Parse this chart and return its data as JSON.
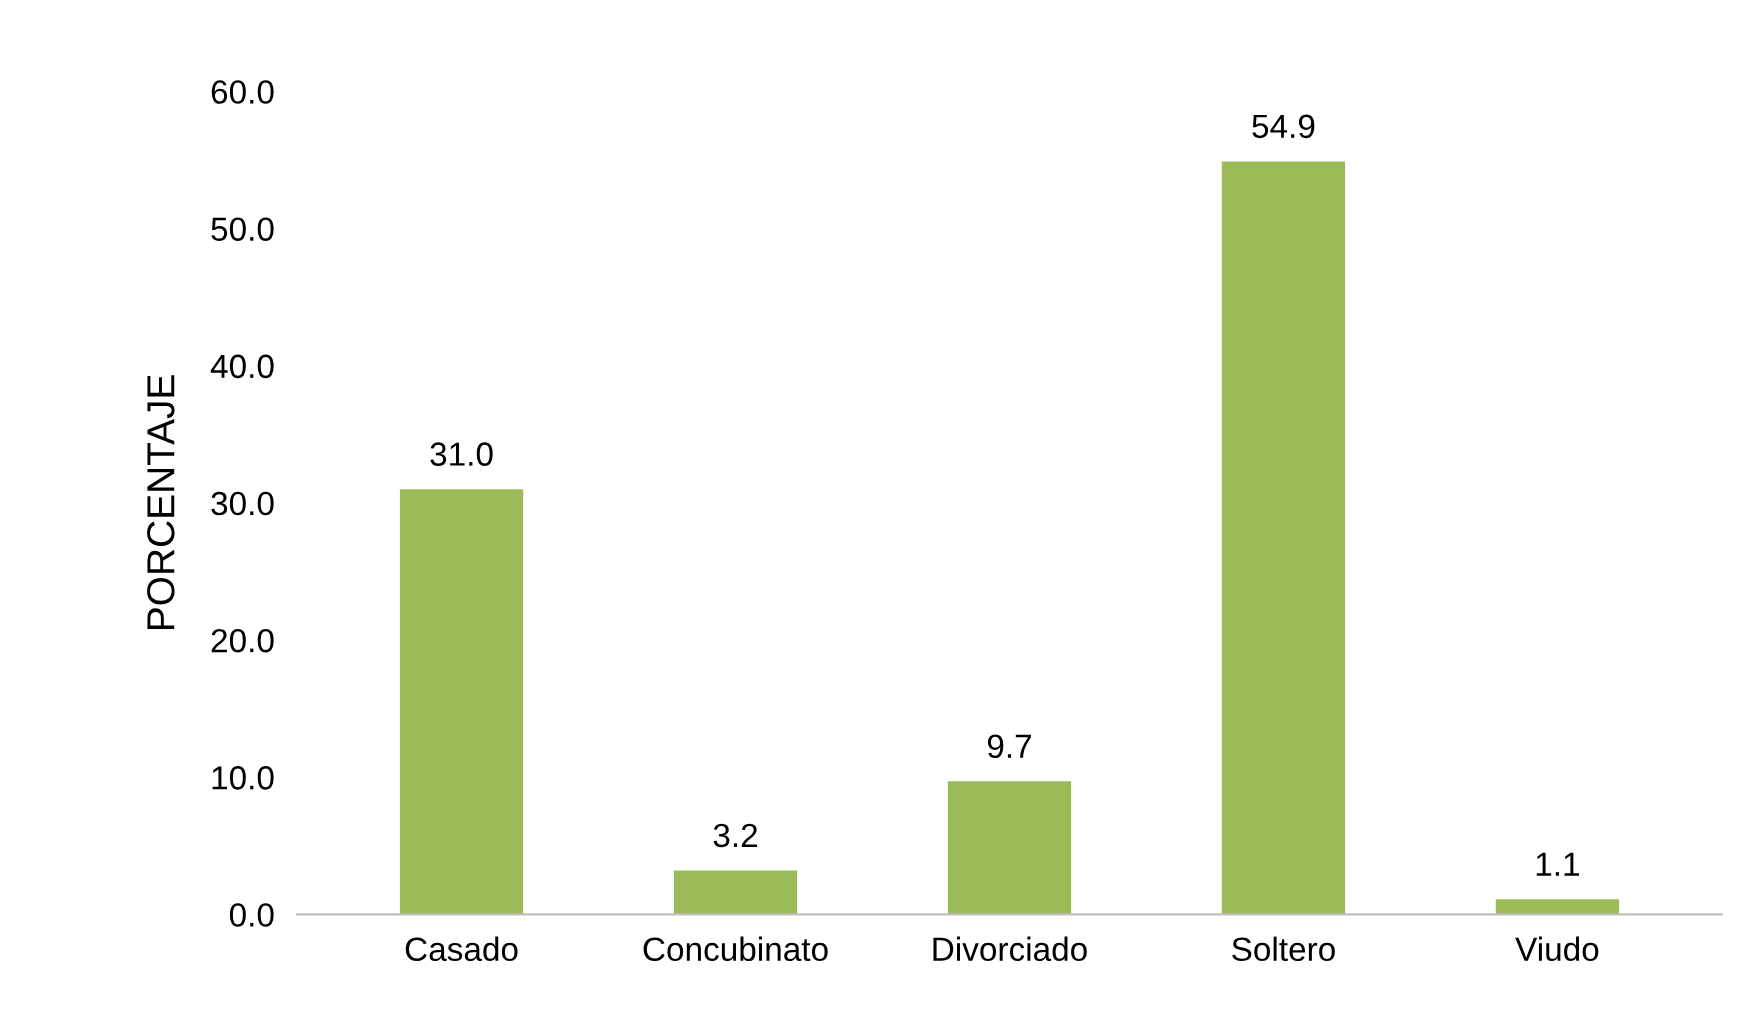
{
  "chart_data": {
    "type": "bar",
    "ylabel": "PORCENTAJE",
    "categories": [
      "Casado",
      "Concubinato",
      "Divorciado",
      "Soltero",
      "Viudo"
    ],
    "values": [
      31.0,
      3.2,
      9.7,
      54.9,
      1.1
    ],
    "color": "#9bbb59",
    "ylim": [
      0,
      60
    ],
    "yticks": [
      {
        "value": 0,
        "label": "0.0"
      },
      {
        "value": 10,
        "label": "10.0"
      },
      {
        "value": 20,
        "label": "20.0"
      },
      {
        "value": 30,
        "label": "30.0"
      },
      {
        "value": 40,
        "label": "40.0"
      },
      {
        "value": 50,
        "label": "50.0"
      },
      {
        "value": 60,
        "label": "60.0"
      }
    ],
    "value_labels": [
      "31.0",
      "3.2",
      "9.7",
      "54.9",
      "1.1"
    ],
    "grid": false,
    "legend": false
  }
}
